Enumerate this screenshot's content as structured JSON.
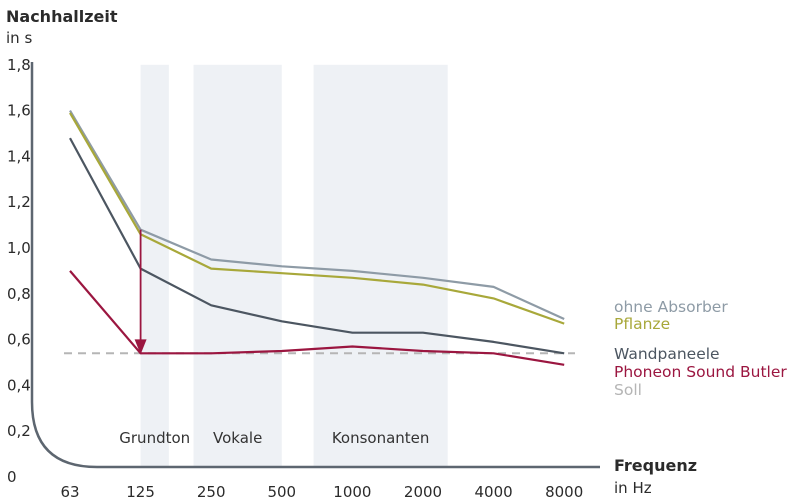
{
  "chart_data": {
    "type": "line",
    "ylabel": "Nachhallzeit",
    "yunit": "in s",
    "xlabel": "Frequenz",
    "xunit": "in Hz",
    "ylim": [
      0,
      1.8
    ],
    "yticks": [
      "0",
      "0,2",
      "0,4",
      "0,6",
      "0,8",
      "1,0",
      "1,2",
      "1,4",
      "1,6",
      "1,8"
    ],
    "ytick_values": [
      0,
      0.2,
      0.4,
      0.6,
      0.8,
      1.0,
      1.2,
      1.4,
      1.6,
      1.8
    ],
    "categories": [
      "63",
      "125",
      "250",
      "500",
      "1000",
      "2000",
      "4000",
      "8000"
    ],
    "bands": [
      {
        "label": "Grundton",
        "from": 1.0,
        "to": 1.4
      },
      {
        "label": "Vokale",
        "from": 1.75,
        "to": 3.0
      },
      {
        "label": "Konsonanten",
        "from": 3.45,
        "to": 5.35
      }
    ],
    "series": [
      {
        "name": "ohne Absorber",
        "color": "#8e9ba6",
        "dashed": false,
        "values": [
          1.6,
          1.08,
          0.95,
          0.92,
          0.9,
          0.87,
          0.83,
          0.69
        ]
      },
      {
        "name": "Pflanze",
        "color": "#a8a83a",
        "dashed": false,
        "values": [
          1.59,
          1.06,
          0.91,
          0.89,
          0.87,
          0.84,
          0.78,
          0.67
        ]
      },
      {
        "name": "Wandpaneele",
        "color": "#4c5661",
        "dashed": false,
        "values": [
          1.48,
          0.91,
          0.75,
          0.68,
          0.63,
          0.63,
          0.59,
          0.54
        ]
      },
      {
        "name": "Phoneon Sound  Butler",
        "color": "#9b1640",
        "dashed": false,
        "values": [
          0.9,
          0.54,
          0.54,
          0.55,
          0.57,
          0.55,
          0.54,
          0.49
        ]
      },
      {
        "name": "Soll",
        "color": "#b5b5b5",
        "dashed": true,
        "values": [
          0.54,
          0.54,
          0.54,
          0.54,
          0.54,
          0.54,
          0.54,
          0.54
        ]
      }
    ],
    "annotation": {
      "type": "arrow",
      "category": "125",
      "from": 1.08,
      "to": 0.54,
      "color": "#9b1640"
    }
  }
}
